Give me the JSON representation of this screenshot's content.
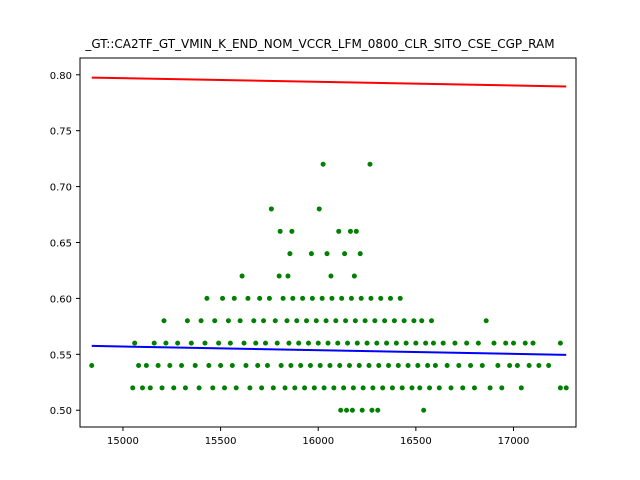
{
  "chart_data": {
    "type": "scatter",
    "title": "_GT::CA2TF_GT_VMIN_K_END_NOM_VCCR_LFM_0800_CLR_SITO_CSE_CGP_RAM",
    "xlabel": "",
    "ylabel": "",
    "xlim": [
      14780,
      17320
    ],
    "ylim": [
      0.485,
      0.815
    ],
    "grid": false,
    "x_ticks": [
      {
        "value": 15000,
        "label": "15000"
      },
      {
        "value": 15500,
        "label": "15500"
      },
      {
        "value": 16000,
        "label": "16000"
      },
      {
        "value": 16500,
        "label": "16500"
      },
      {
        "value": 17000,
        "label": "17000"
      }
    ],
    "y_ticks": [
      {
        "value": 0.5,
        "label": "0.50"
      },
      {
        "value": 0.55,
        "label": "0.55"
      },
      {
        "value": 0.6,
        "label": "0.60"
      },
      {
        "value": 0.65,
        "label": "0.65"
      },
      {
        "value": 0.7,
        "label": "0.70"
      },
      {
        "value": 0.75,
        "label": "0.75"
      },
      {
        "value": 0.8,
        "label": "0.80"
      }
    ],
    "series": [
      {
        "kind": "points",
        "color": "#008000",
        "points": [
          [
            14840,
            0.54
          ],
          [
            15050,
            0.52
          ],
          [
            15060,
            0.56
          ],
          [
            15080,
            0.54
          ],
          [
            15100,
            0.52
          ],
          [
            15120,
            0.54
          ],
          [
            15140,
            0.52
          ],
          [
            15160,
            0.56
          ],
          [
            15180,
            0.54
          ],
          [
            15200,
            0.52
          ],
          [
            15210,
            0.58
          ],
          [
            15220,
            0.56
          ],
          [
            15240,
            0.54
          ],
          [
            15260,
            0.52
          ],
          [
            15280,
            0.56
          ],
          [
            15300,
            0.54
          ],
          [
            15320,
            0.52
          ],
          [
            15330,
            0.58
          ],
          [
            15350,
            0.56
          ],
          [
            15370,
            0.54
          ],
          [
            15390,
            0.52
          ],
          [
            15400,
            0.58
          ],
          [
            15420,
            0.56
          ],
          [
            15430,
            0.6
          ],
          [
            15440,
            0.54
          ],
          [
            15460,
            0.52
          ],
          [
            15470,
            0.58
          ],
          [
            15490,
            0.56
          ],
          [
            15500,
            0.54
          ],
          [
            15510,
            0.6
          ],
          [
            15520,
            0.52
          ],
          [
            15540,
            0.58
          ],
          [
            15550,
            0.56
          ],
          [
            15560,
            0.54
          ],
          [
            15570,
            0.6
          ],
          [
            15580,
            0.52
          ],
          [
            15600,
            0.58
          ],
          [
            15610,
            0.62
          ],
          [
            15620,
            0.56
          ],
          [
            15630,
            0.54
          ],
          [
            15640,
            0.6
          ],
          [
            15650,
            0.52
          ],
          [
            15670,
            0.58
          ],
          [
            15680,
            0.56
          ],
          [
            15690,
            0.54
          ],
          [
            15700,
            0.6
          ],
          [
            15710,
            0.52
          ],
          [
            15720,
            0.58
          ],
          [
            15730,
            0.56
          ],
          [
            15740,
            0.54
          ],
          [
            15750,
            0.6
          ],
          [
            15760,
            0.68
          ],
          [
            15770,
            0.52
          ],
          [
            15780,
            0.58
          ],
          [
            15790,
            0.56
          ],
          [
            15800,
            0.62
          ],
          [
            15805,
            0.66
          ],
          [
            15810,
            0.54
          ],
          [
            15820,
            0.6
          ],
          [
            15830,
            0.52
          ],
          [
            15840,
            0.58
          ],
          [
            15845,
            0.62
          ],
          [
            15850,
            0.56
          ],
          [
            15855,
            0.64
          ],
          [
            15860,
            0.54
          ],
          [
            15865,
            0.66
          ],
          [
            15870,
            0.6
          ],
          [
            15880,
            0.52
          ],
          [
            15890,
            0.58
          ],
          [
            15900,
            0.56
          ],
          [
            15910,
            0.54
          ],
          [
            15920,
            0.6
          ],
          [
            15930,
            0.52
          ],
          [
            15940,
            0.58
          ],
          [
            15950,
            0.56
          ],
          [
            15960,
            0.54
          ],
          [
            15965,
            0.64
          ],
          [
            15970,
            0.6
          ],
          [
            15980,
            0.52
          ],
          [
            15990,
            0.58
          ],
          [
            16000,
            0.56
          ],
          [
            16005,
            0.68
          ],
          [
            16010,
            0.54
          ],
          [
            16020,
            0.6
          ],
          [
            16025,
            0.72
          ],
          [
            16030,
            0.52
          ],
          [
            16040,
            0.58
          ],
          [
            16045,
            0.64
          ],
          [
            16050,
            0.56
          ],
          [
            16060,
            0.54
          ],
          [
            16065,
            0.62
          ],
          [
            16070,
            0.6
          ],
          [
            16080,
            0.52
          ],
          [
            16090,
            0.58
          ],
          [
            16100,
            0.56
          ],
          [
            16105,
            0.66
          ],
          [
            16110,
            0.54
          ],
          [
            16115,
            0.5
          ],
          [
            16120,
            0.6
          ],
          [
            16130,
            0.52
          ],
          [
            16135,
            0.64
          ],
          [
            16140,
            0.58
          ],
          [
            16145,
            0.5
          ],
          [
            16150,
            0.56
          ],
          [
            16160,
            0.54
          ],
          [
            16165,
            0.66
          ],
          [
            16170,
            0.6
          ],
          [
            16175,
            0.5
          ],
          [
            16180,
            0.52
          ],
          [
            16185,
            0.62
          ],
          [
            16190,
            0.58
          ],
          [
            16195,
            0.66
          ],
          [
            16200,
            0.56
          ],
          [
            16210,
            0.54
          ],
          [
            16215,
            0.64
          ],
          [
            16220,
            0.6
          ],
          [
            16225,
            0.5
          ],
          [
            16230,
            0.52
          ],
          [
            16240,
            0.58
          ],
          [
            16250,
            0.56
          ],
          [
            16260,
            0.54
          ],
          [
            16265,
            0.72
          ],
          [
            16270,
            0.6
          ],
          [
            16275,
            0.5
          ],
          [
            16280,
            0.52
          ],
          [
            16290,
            0.58
          ],
          [
            16300,
            0.56
          ],
          [
            16305,
            0.5
          ],
          [
            16310,
            0.54
          ],
          [
            16320,
            0.6
          ],
          [
            16330,
            0.52
          ],
          [
            16340,
            0.58
          ],
          [
            16350,
            0.56
          ],
          [
            16360,
            0.54
          ],
          [
            16370,
            0.6
          ],
          [
            16380,
            0.52
          ],
          [
            16390,
            0.58
          ],
          [
            16400,
            0.56
          ],
          [
            16410,
            0.54
          ],
          [
            16420,
            0.6
          ],
          [
            16430,
            0.52
          ],
          [
            16440,
            0.58
          ],
          [
            16450,
            0.56
          ],
          [
            16460,
            0.54
          ],
          [
            16480,
            0.52
          ],
          [
            16490,
            0.58
          ],
          [
            16500,
            0.56
          ],
          [
            16510,
            0.54
          ],
          [
            16520,
            0.52
          ],
          [
            16530,
            0.58
          ],
          [
            16540,
            0.5
          ],
          [
            16550,
            0.56
          ],
          [
            16560,
            0.54
          ],
          [
            16570,
            0.52
          ],
          [
            16580,
            0.58
          ],
          [
            16590,
            0.56
          ],
          [
            16600,
            0.54
          ],
          [
            16620,
            0.52
          ],
          [
            16640,
            0.56
          ],
          [
            16660,
            0.54
          ],
          [
            16680,
            0.52
          ],
          [
            16700,
            0.56
          ],
          [
            16720,
            0.54
          ],
          [
            16740,
            0.52
          ],
          [
            16760,
            0.56
          ],
          [
            16780,
            0.54
          ],
          [
            16800,
            0.52
          ],
          [
            16820,
            0.56
          ],
          [
            16840,
            0.54
          ],
          [
            16860,
            0.58
          ],
          [
            16880,
            0.52
          ],
          [
            16900,
            0.56
          ],
          [
            16920,
            0.54
          ],
          [
            16940,
            0.52
          ],
          [
            16960,
            0.56
          ],
          [
            16980,
            0.54
          ],
          [
            17000,
            0.56
          ],
          [
            17020,
            0.54
          ],
          [
            17040,
            0.52
          ],
          [
            17060,
            0.56
          ],
          [
            17080,
            0.54
          ],
          [
            17100,
            0.56
          ],
          [
            17130,
            0.54
          ],
          [
            17180,
            0.54
          ],
          [
            17240,
            0.56
          ],
          [
            17240,
            0.52
          ],
          [
            17270,
            0.52
          ]
        ]
      },
      {
        "kind": "line",
        "color": "#ff0000",
        "points": [
          [
            14840,
            0.7975
          ],
          [
            17270,
            0.7895
          ]
        ]
      },
      {
        "kind": "line",
        "color": "#0000ff",
        "points": [
          [
            14840,
            0.5575
          ],
          [
            17270,
            0.5495
          ]
        ]
      }
    ]
  }
}
